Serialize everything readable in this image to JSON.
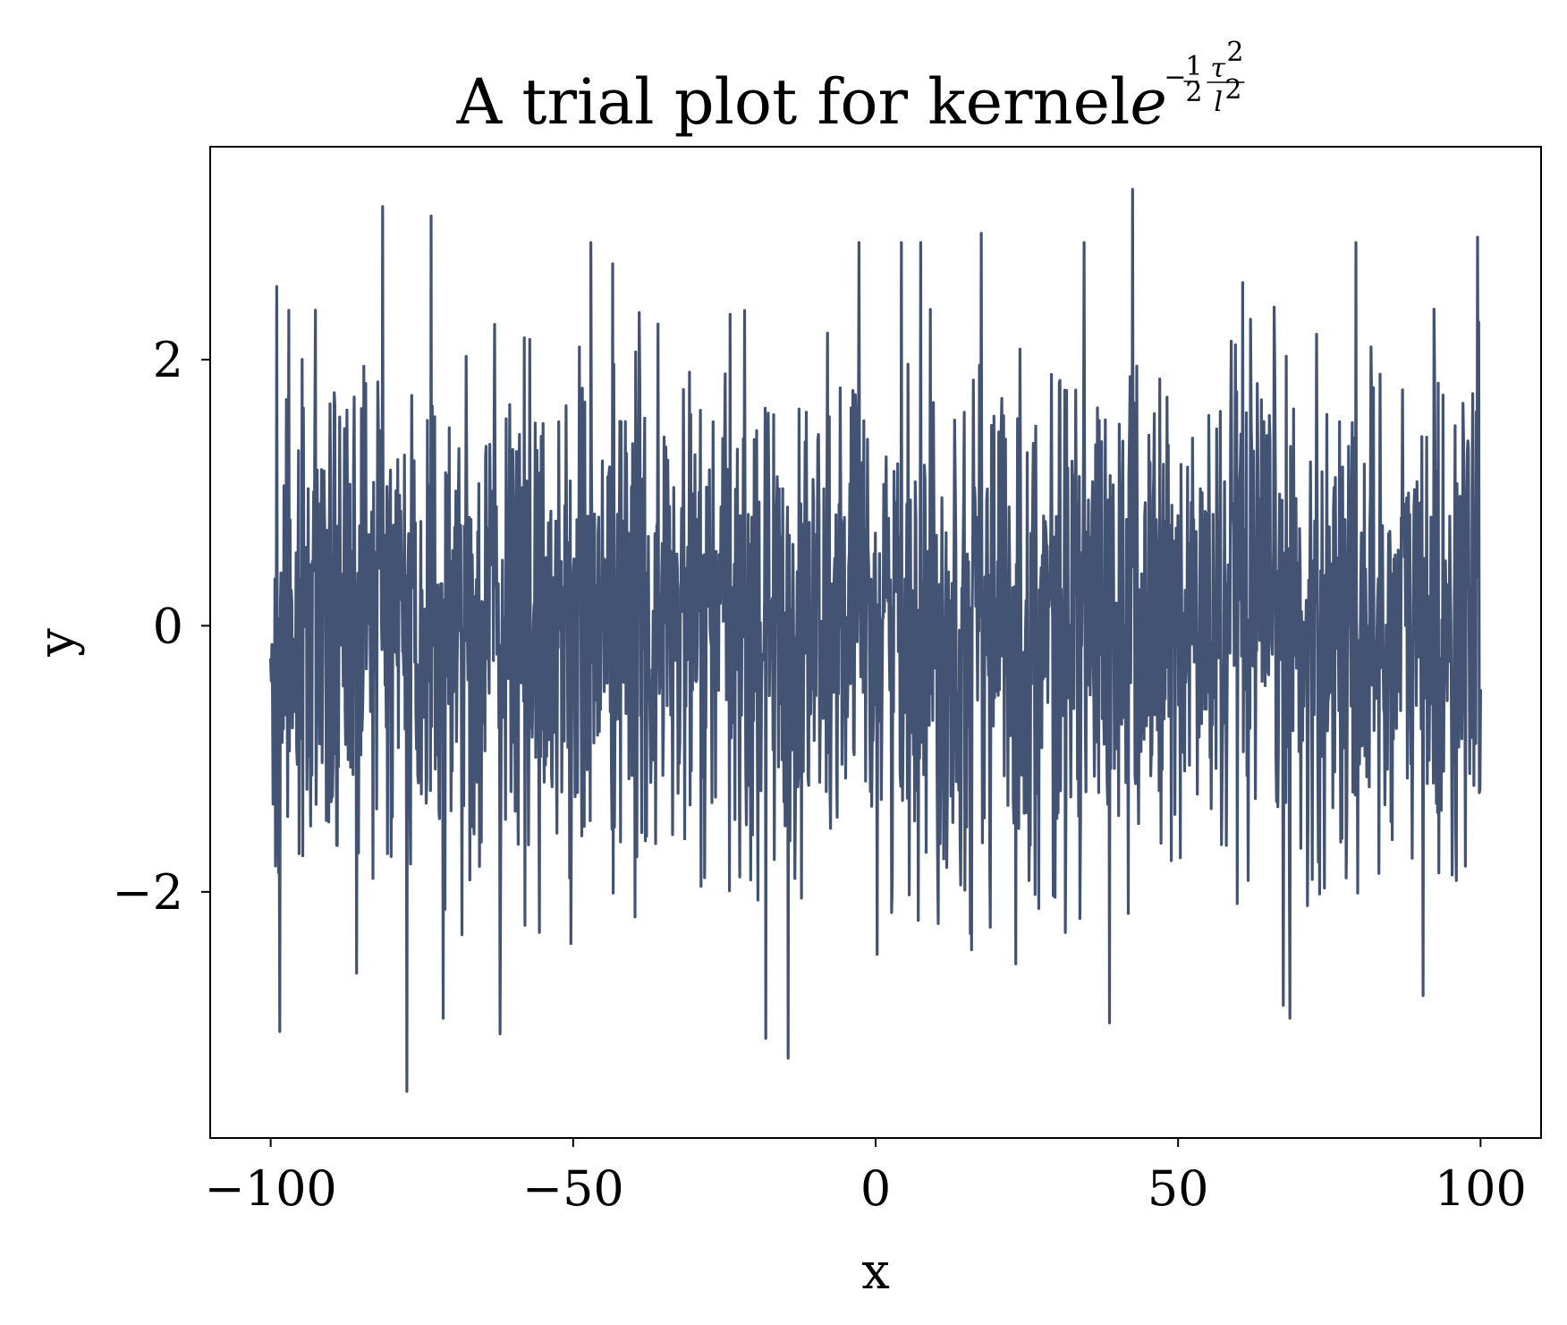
{
  "chart_data": {
    "type": "line",
    "title": {
      "main": "A trial plot for kernel ",
      "base": "e",
      "exp_sign": "−",
      "exp_num": "1",
      "exp_den": "2",
      "exp_tau": "τ",
      "exp_tau_pow": "2",
      "exp_l": "l",
      "exp_l_pow": "2"
    },
    "xlabel": "x",
    "ylabel": "y",
    "xlim": [
      -110,
      110
    ],
    "ylim": [
      -3.85,
      3.6
    ],
    "xticks": [
      -100,
      -50,
      0,
      50,
      100
    ],
    "xtick_labels": [
      "−100",
      "−50",
      "0",
      "50",
      "100"
    ],
    "yticks": [
      -2,
      0,
      2
    ],
    "ytick_labels": [
      "−2",
      "0",
      "2"
    ],
    "grid": false,
    "legend": "none",
    "series_color": "#435373",
    "series": [
      {
        "x_range": [
          -100,
          100
        ],
        "n_points": 2000,
        "mean": 0.0,
        "std": 1.0,
        "min": -3.5,
        "max": 3.28,
        "extremes": [
          {
            "x": -99.0,
            "y": 2.55
          },
          {
            "x": -98.5,
            "y": -3.05
          },
          {
            "x": -81.5,
            "y": 3.15
          },
          {
            "x": -77.5,
            "y": -3.5
          },
          {
            "x": -73.5,
            "y": 3.08
          },
          {
            "x": -71.5,
            "y": -2.95
          },
          {
            "x": -43.5,
            "y": 2.72
          },
          {
            "x": -14.5,
            "y": -3.25
          },
          {
            "x": 7.5,
            "y": 2.88
          },
          {
            "x": 17.5,
            "y": 2.95
          },
          {
            "x": 42.5,
            "y": 3.28
          },
          {
            "x": 68.5,
            "y": -2.95
          },
          {
            "x": 90.5,
            "y": -2.78
          },
          {
            "x": 99.5,
            "y": 2.92
          }
        ]
      }
    ]
  }
}
